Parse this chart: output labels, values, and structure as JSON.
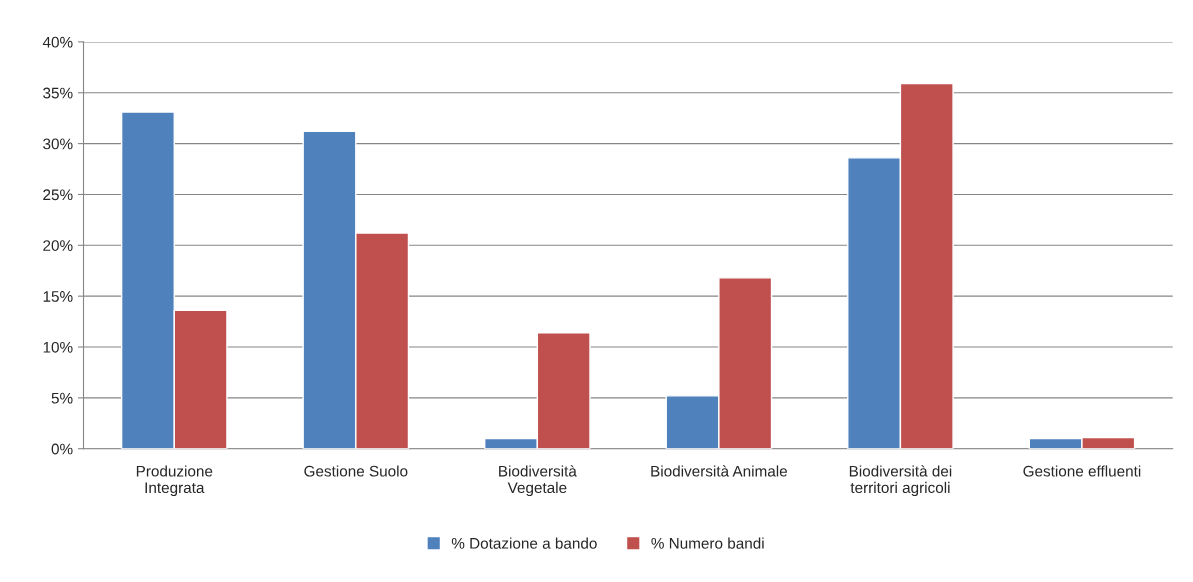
{
  "chart_data": {
    "type": "bar",
    "categories": [
      "Produzione\nIntegrata",
      "Gestione Suolo",
      "Biodiversità\nVegetale",
      "Biodiversità Animale",
      "Biodiversità dei\nterritori agricoli",
      "Gestione effluenti"
    ],
    "series": [
      {
        "name": "% Dotazione a bando",
        "color": "#4f81bd",
        "values": [
          33.1,
          31.2,
          1.0,
          5.2,
          28.6,
          1.0
        ]
      },
      {
        "name": "% Numero bandi",
        "color": "#c0504d",
        "values": [
          13.6,
          21.2,
          11.4,
          16.8,
          35.9,
          1.1
        ]
      }
    ],
    "ylim": [
      0,
      40
    ],
    "yticks": [
      {
        "value": 0,
        "label": "0%"
      },
      {
        "value": 5,
        "label": "5%"
      },
      {
        "value": 10,
        "label": "10%"
      },
      {
        "value": 15,
        "label": "15%"
      },
      {
        "value": 20,
        "label": "20%"
      },
      {
        "value": 25,
        "label": "25%"
      },
      {
        "value": 30,
        "label": "30%"
      },
      {
        "value": 35,
        "label": "35%"
      },
      {
        "value": 40,
        "label": "40%"
      }
    ],
    "grid": "y",
    "legend": "bottom"
  }
}
